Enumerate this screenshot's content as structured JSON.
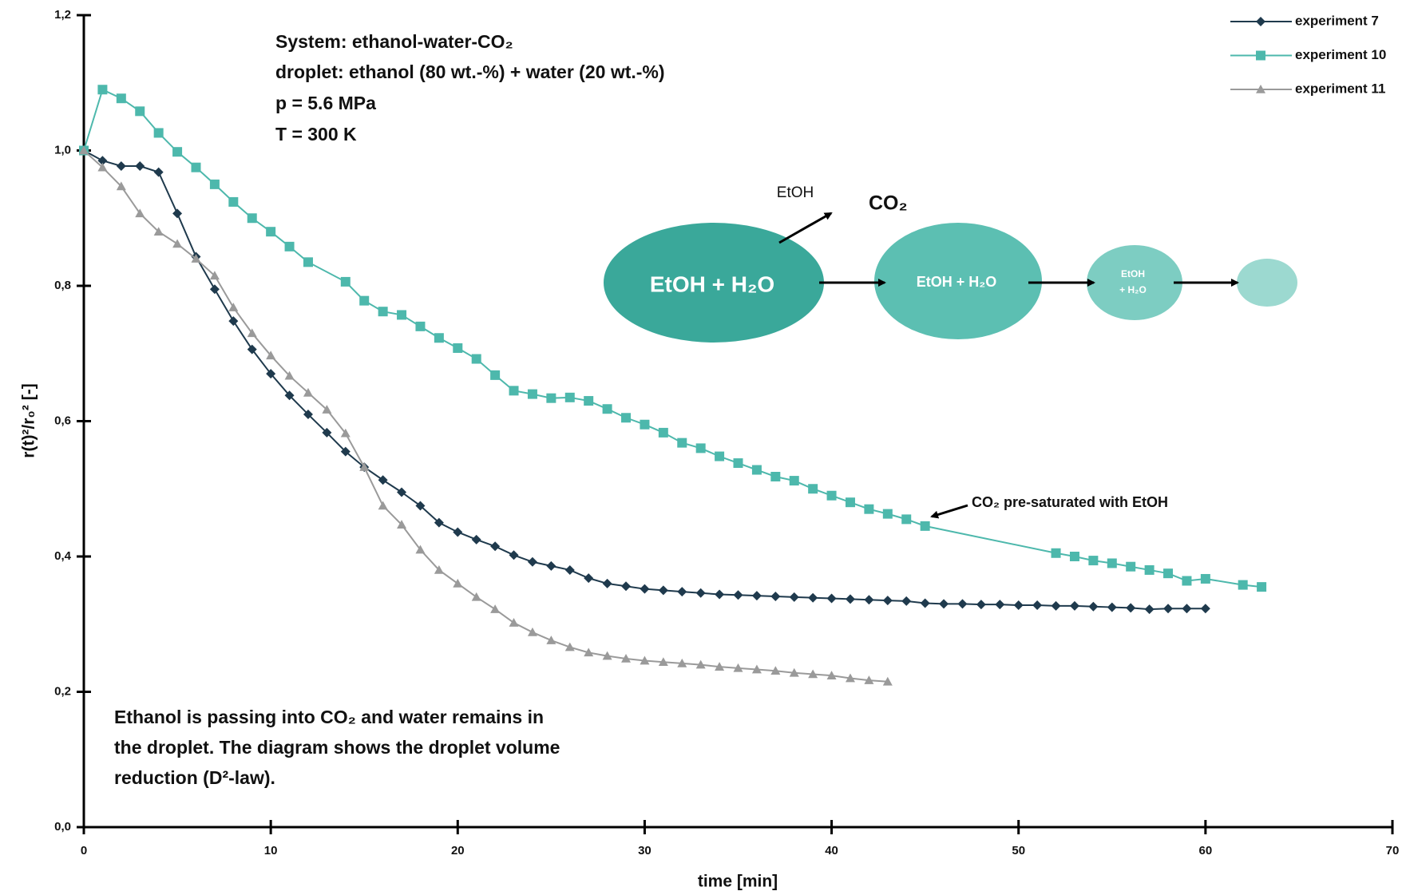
{
  "chart_data": {
    "type": "line",
    "xlabel": "time [min]",
    "ylabel": "r(t)²/r₀² [-]",
    "xlim": [
      0,
      70
    ],
    "xticks": [
      0,
      10,
      20,
      30,
      40,
      50,
      60,
      70
    ],
    "ylim": [
      0,
      1.2
    ],
    "yticks": [
      {
        "value": 0,
        "label": "0,0"
      },
      {
        "value": 0.2,
        "label": "0,2"
      },
      {
        "value": 0.4,
        "label": "0,4"
      },
      {
        "value": 0.6,
        "label": "0,6"
      },
      {
        "value": 0.8,
        "label": "0,8"
      },
      {
        "value": 1.0,
        "label": "1,0"
      },
      {
        "value": 1.2,
        "label": "1,2"
      }
    ],
    "legend": "top-right",
    "series": [
      {
        "name": "experiment 7",
        "color": "#1f3a4d",
        "marker": "diamond",
        "x": [
          0,
          1,
          2,
          3,
          4,
          5,
          6,
          7,
          8,
          9,
          10,
          11,
          12,
          13,
          14,
          15,
          16,
          17,
          18,
          19,
          20,
          21,
          22,
          23,
          24,
          25,
          26,
          27,
          28,
          29,
          30,
          31,
          32,
          33,
          34,
          35,
          36,
          37,
          38,
          39,
          40,
          41,
          42,
          43,
          44,
          45,
          46,
          47,
          48,
          49,
          50,
          51,
          52,
          53,
          54,
          55,
          56,
          57,
          58,
          59,
          60
        ],
        "values": [
          1.0,
          0.985,
          0.977,
          0.977,
          0.968,
          0.907,
          0.843,
          0.795,
          0.748,
          0.706,
          0.67,
          0.638,
          0.61,
          0.583,
          0.555,
          0.532,
          0.513,
          0.495,
          0.475,
          0.45,
          0.436,
          0.425,
          0.415,
          0.402,
          0.392,
          0.386,
          0.38,
          0.368,
          0.36,
          0.356,
          0.352,
          0.35,
          0.348,
          0.346,
          0.344,
          0.343,
          0.342,
          0.341,
          0.34,
          0.339,
          0.338,
          0.337,
          0.336,
          0.335,
          0.334,
          0.331,
          0.33,
          0.33,
          0.329,
          0.329,
          0.328,
          0.328,
          0.327,
          0.327,
          0.326,
          0.325,
          0.324,
          0.322,
          0.323,
          0.323,
          0.323
        ]
      },
      {
        "name": "experiment 10",
        "color": "#4db8ac",
        "marker": "square",
        "x": [
          0,
          1,
          2,
          3,
          4,
          5,
          6,
          7,
          8,
          9,
          10,
          11,
          12,
          14,
          15,
          16,
          17,
          18,
          19,
          20,
          21,
          22,
          23,
          24,
          25,
          26,
          27,
          28,
          29,
          30,
          31,
          32,
          33,
          34,
          35,
          36,
          37,
          38,
          39,
          40,
          41,
          42,
          43,
          44,
          45,
          52,
          53,
          54,
          55,
          56,
          57,
          58,
          59,
          60,
          62,
          63
        ],
        "values": [
          1.0,
          1.09,
          1.077,
          1.058,
          1.026,
          0.998,
          0.975,
          0.95,
          0.924,
          0.9,
          0.88,
          0.858,
          0.835,
          0.806,
          0.778,
          0.762,
          0.757,
          0.74,
          0.723,
          0.708,
          0.692,
          0.668,
          0.645,
          0.64,
          0.634,
          0.635,
          0.63,
          0.618,
          0.605,
          0.595,
          0.583,
          0.568,
          0.56,
          0.548,
          0.538,
          0.528,
          0.518,
          0.512,
          0.5,
          0.49,
          0.48,
          0.47,
          0.463,
          0.455,
          0.445,
          0.405,
          0.4,
          0.394,
          0.39,
          0.385,
          0.38,
          0.375,
          0.364,
          0.367,
          0.358,
          0.355
        ]
      },
      {
        "name": "experiment 11",
        "color": "#9a9a9a",
        "marker": "triangle",
        "x": [
          0,
          1,
          2,
          3,
          4,
          5,
          6,
          7,
          8,
          9,
          10,
          11,
          12,
          13,
          14,
          15,
          16,
          17,
          18,
          19,
          20,
          21,
          22,
          23,
          24,
          25,
          26,
          27,
          28,
          29,
          30,
          31,
          32,
          33,
          34,
          35,
          36,
          37,
          38,
          39,
          40,
          41,
          42,
          43
        ],
        "values": [
          1.0,
          0.975,
          0.947,
          0.907,
          0.88,
          0.862,
          0.84,
          0.815,
          0.768,
          0.73,
          0.697,
          0.667,
          0.642,
          0.617,
          0.582,
          0.532,
          0.475,
          0.447,
          0.41,
          0.38,
          0.36,
          0.34,
          0.322,
          0.302,
          0.288,
          0.276,
          0.266,
          0.258,
          0.253,
          0.249,
          0.246,
          0.244,
          0.242,
          0.24,
          0.237,
          0.235,
          0.233,
          0.231,
          0.228,
          0.226,
          0.224,
          0.22,
          0.217,
          0.215
        ]
      }
    ],
    "annotations": {
      "system": [
        "System: ethanol-water-CO₂",
        "droplet: ethanol (80 wt.-%) + water (20 wt.-%)",
        "p = 5.6 MPa",
        "T = 300 K"
      ],
      "note": [
        "Ethanol is passing into CO₂ and water remains in",
        "the droplet. The diagram shows the droplet volume",
        "reduction (D²-law)."
      ],
      "diagram": {
        "etoh": "EtOH",
        "co2": "CO₂",
        "droplet_large": "EtOH + H₂O",
        "droplet_medium": "EtOH + H₂O",
        "droplet_small": [
          "EtOH",
          "+ H₂O"
        ]
      },
      "arrow_note": "CO₂ pre-saturated with EtOH"
    }
  }
}
